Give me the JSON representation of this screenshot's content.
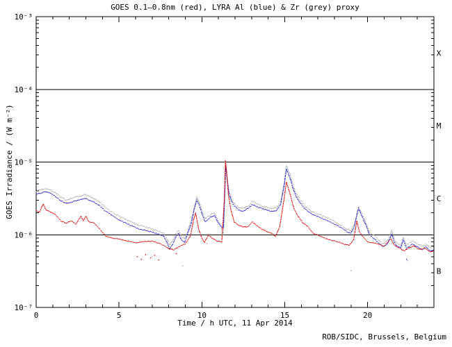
{
  "page": {
    "background": "#ffffff",
    "credit": "ROB/SIDC, Brussels, Belgium"
  },
  "chart_data": {
    "type": "scatter",
    "title": "GOES 0.1–0.8nm (red), LYRA Al (blue) & Zr (grey) proxy",
    "xlabel": "Time / h UTC, 11 Apr 2014",
    "ylabel": "GOES Irradiance / (W m⁻²)",
    "x_range": [
      0,
      24
    ],
    "y_log_range": [
      -7,
      -3
    ],
    "x_major_ticks": [
      0,
      5,
      10,
      15,
      20
    ],
    "x_tick_labels": [
      "0",
      "5",
      "10",
      "15",
      "20"
    ],
    "x_minor_step": 1,
    "y_tick_exponents": [
      -3,
      -4,
      -5,
      -6,
      -7
    ],
    "y_tick_labels": [
      "10⁻³",
      "10⁻⁴",
      "10⁻⁵",
      "10⁻⁶",
      "10⁻⁷"
    ],
    "class_boundary_lines": [
      0.0001,
      1e-05,
      1e-06
    ],
    "flux_class_labels": [
      {
        "label": "X",
        "log10_center": -3.5
      },
      {
        "label": "M",
        "log10_center": -4.5
      },
      {
        "label": "C",
        "log10_center": -5.5
      },
      {
        "label": "B",
        "log10_center": -6.5
      }
    ],
    "grid": false,
    "legend_position": "in-title",
    "axis_color": "#000000",
    "series": [
      {
        "name": "LYRA Zr proxy",
        "color": "#a8a8a8",
        "marker": "dot",
        "jitter": 1.8,
        "points": [
          [
            0,
            4e-06
          ],
          [
            0.3,
            4.2e-06
          ],
          [
            0.6,
            4.35e-06
          ],
          [
            0.9,
            4.1e-06
          ],
          [
            1.2,
            3.7e-06
          ],
          [
            1.5,
            3.3e-06
          ],
          [
            1.8,
            3e-06
          ],
          [
            2.1,
            3.15e-06
          ],
          [
            2.4,
            3.3e-06
          ],
          [
            2.7,
            3.4e-06
          ],
          [
            2.95,
            3.55e-06
          ],
          [
            3.2,
            3.35e-06
          ],
          [
            3.5,
            3.1e-06
          ],
          [
            3.8,
            2.85e-06
          ],
          [
            4.1,
            2.45e-06
          ],
          [
            4.5,
            2.1e-06
          ],
          [
            5.0,
            1.8e-06
          ],
          [
            5.6,
            1.55e-06
          ],
          [
            6.2,
            1.35e-06
          ],
          [
            6.8,
            1.25e-06
          ],
          [
            7.4,
            1.12e-06
          ],
          [
            7.7,
            1.05e-06
          ],
          [
            7.9,
            8.8e-07
          ],
          [
            8.05,
            7.2e-07
          ],
          [
            8.25,
            8.5e-07
          ],
          [
            8.45,
            1.05e-06
          ],
          [
            8.6,
            1.15e-06
          ],
          [
            8.75,
            9.5e-07
          ],
          [
            8.95,
            8.8e-07
          ],
          [
            9.15,
            1.15e-06
          ],
          [
            9.35,
            1.55e-06
          ],
          [
            9.55,
            2.5e-06
          ],
          [
            9.7,
            3.3e-06
          ],
          [
            9.85,
            2.75e-06
          ],
          [
            10.05,
            2e-06
          ],
          [
            10.2,
            1.65e-06
          ],
          [
            10.45,
            1.85e-06
          ],
          [
            10.75,
            2e-06
          ],
          [
            10.95,
            1.6e-06
          ],
          [
            11.15,
            1.3e-06
          ],
          [
            11.3,
            1e-06
          ],
          [
            11.38,
            3.8e-06
          ],
          [
            11.44,
            9.5e-06
          ],
          [
            11.52,
            6.3e-06
          ],
          [
            11.62,
            4.1e-06
          ],
          [
            11.78,
            3.1e-06
          ],
          [
            11.95,
            2.7e-06
          ],
          [
            12.2,
            2.4e-06
          ],
          [
            12.5,
            2.3e-06
          ],
          [
            12.8,
            2.5e-06
          ],
          [
            13.05,
            2.85e-06
          ],
          [
            13.3,
            2.7e-06
          ],
          [
            13.6,
            2.5e-06
          ],
          [
            13.9,
            2.4e-06
          ],
          [
            14.2,
            2.3e-06
          ],
          [
            14.5,
            2.35e-06
          ],
          [
            14.75,
            2.85e-06
          ],
          [
            14.95,
            5e-06
          ],
          [
            15.1,
            9e-06
          ],
          [
            15.3,
            6.9e-06
          ],
          [
            15.5,
            4.8e-06
          ],
          [
            15.7,
            3.6e-06
          ],
          [
            15.9,
            3.05e-06
          ],
          [
            16.2,
            2.5e-06
          ],
          [
            16.5,
            2.2e-06
          ],
          [
            16.8,
            2e-06
          ],
          [
            17.2,
            1.85e-06
          ],
          [
            17.6,
            1.7e-06
          ],
          [
            18.0,
            1.52e-06
          ],
          [
            18.4,
            1.35e-06
          ],
          [
            18.75,
            1.2e-06
          ],
          [
            19.0,
            1.12e-06
          ],
          [
            19.2,
            1.4e-06
          ],
          [
            19.45,
            2.45e-06
          ],
          [
            19.65,
            1.95e-06
          ],
          [
            19.9,
            1.45e-06
          ],
          [
            20.1,
            1.1e-06
          ],
          [
            20.35,
            1e-06
          ],
          [
            20.6,
            8.8e-07
          ],
          [
            20.9,
            7.5e-07
          ],
          [
            21.2,
            8.2e-07
          ],
          [
            21.45,
            1.15e-06
          ],
          [
            21.6,
            8.8e-07
          ],
          [
            21.75,
            7.8e-07
          ],
          [
            22.0,
            7.2e-07
          ],
          [
            22.15,
            9.2e-07
          ],
          [
            22.35,
            7.2e-07
          ],
          [
            22.7,
            8.2e-07
          ],
          [
            23.0,
            7.5e-07
          ],
          [
            23.3,
            7e-07
          ],
          [
            23.5,
            7.4e-07
          ],
          [
            23.8,
            6.6e-07
          ],
          [
            24,
            7e-07
          ]
        ]
      },
      {
        "name": "LYRA Al proxy",
        "color": "#2222cc",
        "marker": "dot",
        "jitter": 1.3,
        "points": [
          [
            0,
            3.6e-06
          ],
          [
            0.3,
            3.75e-06
          ],
          [
            0.6,
            3.9e-06
          ],
          [
            0.9,
            3.7e-06
          ],
          [
            1.2,
            3.3e-06
          ],
          [
            1.5,
            2.95e-06
          ],
          [
            1.8,
            2.7e-06
          ],
          [
            2.1,
            2.8e-06
          ],
          [
            2.4,
            2.95e-06
          ],
          [
            2.7,
            3.05e-06
          ],
          [
            2.95,
            3.2e-06
          ],
          [
            3.2,
            3e-06
          ],
          [
            3.5,
            2.8e-06
          ],
          [
            3.8,
            2.55e-06
          ],
          [
            4.1,
            2.2e-06
          ],
          [
            4.5,
            1.9e-06
          ],
          [
            5.0,
            1.6e-06
          ],
          [
            5.6,
            1.38e-06
          ],
          [
            6.2,
            1.2e-06
          ],
          [
            6.8,
            1.12e-06
          ],
          [
            7.4,
            1.02e-06
          ],
          [
            7.7,
            9.5e-07
          ],
          [
            7.9,
            7.8e-07
          ],
          [
            8.05,
            6.4e-07
          ],
          [
            8.25,
            7.5e-07
          ],
          [
            8.45,
            9.5e-07
          ],
          [
            8.6,
            1.05e-06
          ],
          [
            8.75,
            8.5e-07
          ],
          [
            8.95,
            7.8e-07
          ],
          [
            9.15,
            1.05e-06
          ],
          [
            9.35,
            1.4e-06
          ],
          [
            9.55,
            2.3e-06
          ],
          [
            9.7,
            3e-06
          ],
          [
            9.85,
            2.5e-06
          ],
          [
            10.05,
            1.8e-06
          ],
          [
            10.2,
            1.5e-06
          ],
          [
            10.45,
            1.7e-06
          ],
          [
            10.75,
            1.85e-06
          ],
          [
            10.95,
            1.5e-06
          ],
          [
            11.15,
            1.3e-06
          ],
          [
            11.3,
            1.25e-06
          ],
          [
            11.38,
            3.5e-06
          ],
          [
            11.44,
            9e-06
          ],
          [
            11.52,
            6e-06
          ],
          [
            11.62,
            3.8e-06
          ],
          [
            11.78,
            2.9e-06
          ],
          [
            11.95,
            2.5e-06
          ],
          [
            12.2,
            2.2e-06
          ],
          [
            12.5,
            2.1e-06
          ],
          [
            12.8,
            2.3e-06
          ],
          [
            13.05,
            2.6e-06
          ],
          [
            13.3,
            2.45e-06
          ],
          [
            13.6,
            2.3e-06
          ],
          [
            13.9,
            2.2e-06
          ],
          [
            14.2,
            2.1e-06
          ],
          [
            14.5,
            2.15e-06
          ],
          [
            14.75,
            2.6e-06
          ],
          [
            14.95,
            4.5e-06
          ],
          [
            15.1,
            8e-06
          ],
          [
            15.3,
            6.2e-06
          ],
          [
            15.5,
            4.3e-06
          ],
          [
            15.7,
            3.3e-06
          ],
          [
            15.9,
            2.8e-06
          ],
          [
            16.2,
            2.3e-06
          ],
          [
            16.5,
            2e-06
          ],
          [
            16.8,
            1.85e-06
          ],
          [
            17.2,
            1.7e-06
          ],
          [
            17.6,
            1.55e-06
          ],
          [
            18.0,
            1.4e-06
          ],
          [
            18.4,
            1.25e-06
          ],
          [
            18.75,
            1.1e-06
          ],
          [
            19.0,
            1.05e-06
          ],
          [
            19.2,
            1.3e-06
          ],
          [
            19.45,
            2.3e-06
          ],
          [
            19.65,
            1.8e-06
          ],
          [
            19.9,
            1.35e-06
          ],
          [
            20.1,
            1e-06
          ],
          [
            20.35,
            9e-07
          ],
          [
            20.6,
            8e-07
          ],
          [
            20.9,
            6.8e-07
          ],
          [
            21.2,
            7.5e-07
          ],
          [
            21.45,
            1.02e-06
          ],
          [
            21.6,
            8e-07
          ],
          [
            21.75,
            7e-07
          ],
          [
            22.0,
            6.6e-07
          ],
          [
            22.15,
            8.5e-07
          ],
          [
            22.35,
            6.5e-07
          ],
          [
            22.7,
            7.5e-07
          ],
          [
            23.0,
            6.8e-07
          ],
          [
            23.3,
            6.3e-07
          ],
          [
            23.5,
            6.8e-07
          ],
          [
            23.8,
            6e-07
          ],
          [
            24,
            6.3e-07
          ]
        ]
      },
      {
        "name": "GOES 0.1-0.8nm",
        "color": "#dd0000",
        "marker": "dot",
        "jitter": 1.0,
        "points": [
          [
            0,
            2.15e-06
          ],
          [
            0.2,
            2.05e-06
          ],
          [
            0.42,
            2.65e-06
          ],
          [
            0.6,
            2.2e-06
          ],
          [
            0.9,
            2.05e-06
          ],
          [
            1.2,
            1.85e-06
          ],
          [
            1.5,
            1.55e-06
          ],
          [
            1.8,
            1.45e-06
          ],
          [
            2.1,
            1.55e-06
          ],
          [
            2.4,
            1.4e-06
          ],
          [
            2.7,
            1.8e-06
          ],
          [
            2.85,
            1.55e-06
          ],
          [
            3.0,
            1.8e-06
          ],
          [
            3.2,
            1.5e-06
          ],
          [
            3.5,
            1.45e-06
          ],
          [
            3.7,
            1.3e-06
          ],
          [
            3.9,
            1.15e-06
          ],
          [
            4.2,
            9.5e-07
          ],
          [
            4.6,
            9e-07
          ],
          [
            5.0,
            8.7e-07
          ],
          [
            5.5,
            8.2e-07
          ],
          [
            6.0,
            7.8e-07
          ],
          [
            6.5,
            8e-07
          ],
          [
            7.0,
            8.2e-07
          ],
          [
            7.5,
            7.5e-07
          ],
          [
            8.0,
            6.5e-07
          ],
          [
            8.3,
            6.2e-07
          ],
          [
            8.6,
            6.8e-07
          ],
          [
            9.0,
            7.5e-07
          ],
          [
            9.3,
            9.5e-07
          ],
          [
            9.5,
            1.6e-06
          ],
          [
            9.62,
            2e-06
          ],
          [
            9.8,
            1.2e-06
          ],
          [
            10.0,
            9e-07
          ],
          [
            10.15,
            7.8e-07
          ],
          [
            10.4,
            1e-06
          ],
          [
            10.6,
            9e-07
          ],
          [
            10.9,
            8.2e-07
          ],
          [
            11.2,
            8e-07
          ],
          [
            11.35,
            3e-06
          ],
          [
            11.42,
            1.05e-05
          ],
          [
            11.5,
            7e-06
          ],
          [
            11.6,
            3.5e-06
          ],
          [
            11.75,
            2.2e-06
          ],
          [
            11.95,
            1.5e-06
          ],
          [
            12.2,
            1.35e-06
          ],
          [
            12.5,
            1.28e-06
          ],
          [
            12.8,
            1.3e-06
          ],
          [
            13.05,
            1.5e-06
          ],
          [
            13.3,
            1.35e-06
          ],
          [
            13.6,
            1.2e-06
          ],
          [
            13.9,
            1.12e-06
          ],
          [
            14.2,
            1.05e-06
          ],
          [
            14.45,
            9.5e-07
          ],
          [
            14.7,
            1.3e-06
          ],
          [
            14.95,
            3e-06
          ],
          [
            15.1,
            5.3e-06
          ],
          [
            15.3,
            3.8e-06
          ],
          [
            15.55,
            2.3e-06
          ],
          [
            15.8,
            1.8e-06
          ],
          [
            16.1,
            1.45e-06
          ],
          [
            16.4,
            1.3e-06
          ],
          [
            16.7,
            1.05e-06
          ],
          [
            17.0,
            9.8e-07
          ],
          [
            17.4,
            9e-07
          ],
          [
            17.8,
            8.4e-07
          ],
          [
            18.2,
            8e-07
          ],
          [
            18.6,
            7.4e-07
          ],
          [
            18.9,
            7.2e-07
          ],
          [
            19.15,
            8.5e-07
          ],
          [
            19.35,
            1.55e-06
          ],
          [
            19.5,
            1.1e-06
          ],
          [
            19.7,
            9.5e-07
          ],
          [
            20.0,
            8e-07
          ],
          [
            20.5,
            7.6e-07
          ],
          [
            21.0,
            7e-07
          ],
          [
            21.4,
            8.8e-07
          ],
          [
            21.6,
            7.2e-07
          ],
          [
            22.0,
            6.4e-07
          ],
          [
            22.2,
            6e-07
          ],
          [
            22.5,
            6.6e-07
          ],
          [
            22.8,
            7e-07
          ],
          [
            23.1,
            6.3e-07
          ],
          [
            23.5,
            6.5e-07
          ],
          [
            23.8,
            5.8e-07
          ],
          [
            24,
            6e-07
          ]
        ]
      }
    ],
    "outliers": [
      {
        "series": "GOES 0.1-0.8nm",
        "color": "#dd0000",
        "points": [
          [
            6.1,
            5e-07
          ],
          [
            6.35,
            4.6e-07
          ],
          [
            6.6,
            5.3e-07
          ],
          [
            6.9,
            4.8e-07
          ],
          [
            7.15,
            5.2e-07
          ],
          [
            7.4,
            4.5e-07
          ],
          [
            8.45,
            5.5e-07
          ]
        ]
      },
      {
        "series": "LYRA Zr proxy",
        "color": "#a8a8a8",
        "points": [
          [
            7.0,
            5e-07
          ],
          [
            8.85,
            3.7e-07
          ],
          [
            10.3,
            7.5e-07
          ],
          [
            19.0,
            3.2e-07
          ],
          [
            22.4,
            4.4e-07
          ]
        ]
      },
      {
        "series": "LYRA Al proxy",
        "color": "#2222cc",
        "points": [
          [
            22.35,
            4.6e-07
          ]
        ]
      }
    ]
  }
}
